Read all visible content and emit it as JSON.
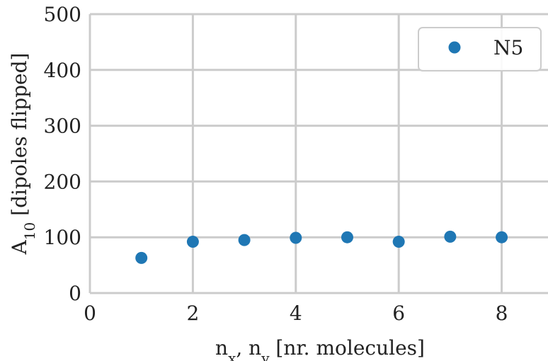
{
  "chart_data": {
    "type": "scatter",
    "xlabel": "n",
    "xlabel_sub1": "x",
    "xlabel_sep": ", n",
    "xlabel_sub2": "y",
    "xlabel_rest": " [nr.  molecules]",
    "ylabel": "A",
    "ylabel_sub": "10",
    "ylabel_rest": " [dipoles flipped]",
    "xlim": [
      0,
      8.9
    ],
    "ylim": [
      0,
      500
    ],
    "xticks": [
      0,
      2,
      4,
      6,
      8
    ],
    "yticks": [
      0,
      100,
      200,
      300,
      400,
      500
    ],
    "grid": true,
    "legend_position": "top-right",
    "series": [
      {
        "name": "N5",
        "color": "#1f77b4",
        "x": [
          1,
          2,
          3,
          4,
          5,
          6,
          7,
          8
        ],
        "y": [
          63,
          92,
          95,
          99,
          100,
          92,
          101,
          100
        ]
      }
    ]
  }
}
